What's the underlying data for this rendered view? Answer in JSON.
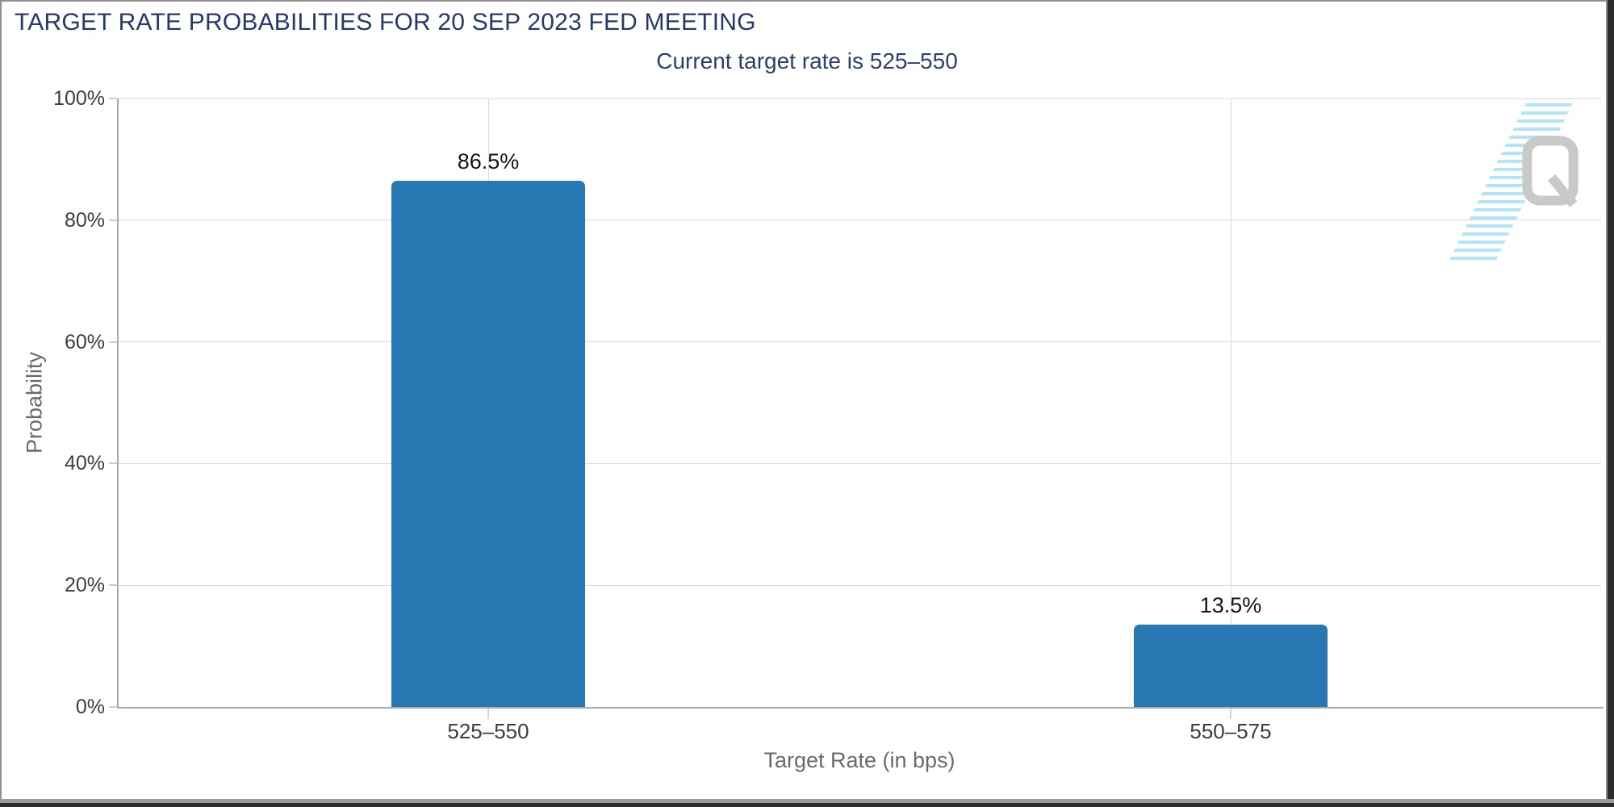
{
  "header": {
    "title": "TARGET RATE PROBABILITIES FOR 20 SEP 2023 FED MEETING",
    "subtitle": "Current target rate is 525–550"
  },
  "chart_data": {
    "type": "bar",
    "title": "TARGET RATE PROBABILITIES FOR 20 SEP 2023 FED MEETING",
    "subtitle": "Current target rate is 525–550",
    "categories": [
      "525–550",
      "550–575"
    ],
    "values": [
      86.5,
      13.5
    ],
    "value_labels": [
      "86.5%",
      "13.5%"
    ],
    "series": [
      {
        "name": "Probability",
        "values": [
          86.5,
          13.5
        ]
      }
    ],
    "xlabel": "Target Rate (in bps)",
    "ylabel": "Probability",
    "ylim": [
      0,
      100
    ],
    "ytick_values": [
      100,
      80,
      60,
      40,
      20,
      0
    ],
    "ytick_labels": [
      "100%",
      "80%",
      "60%",
      "40%",
      "20%",
      "0%"
    ],
    "grid": true,
    "legend": "none",
    "bar_color": "#2878B4"
  },
  "watermark": {
    "letter": "Q",
    "icon": "quikstrike-q-logo"
  },
  "colors": {
    "heading": "#25396A",
    "subtitle": "#2B3F6A",
    "bar": "#2878B4",
    "gridline": "#DBDBDB",
    "axis_line": "#ABABAB",
    "tick_label": "#3D3D3D",
    "axis_title": "#6A6A6A",
    "value_label": "#141414",
    "watermark_gray": "#C9C9C9",
    "watermark_blue": "#9EDFF5",
    "border_gray": "#8F8F8F",
    "border_dark": "#2B2B2B"
  }
}
